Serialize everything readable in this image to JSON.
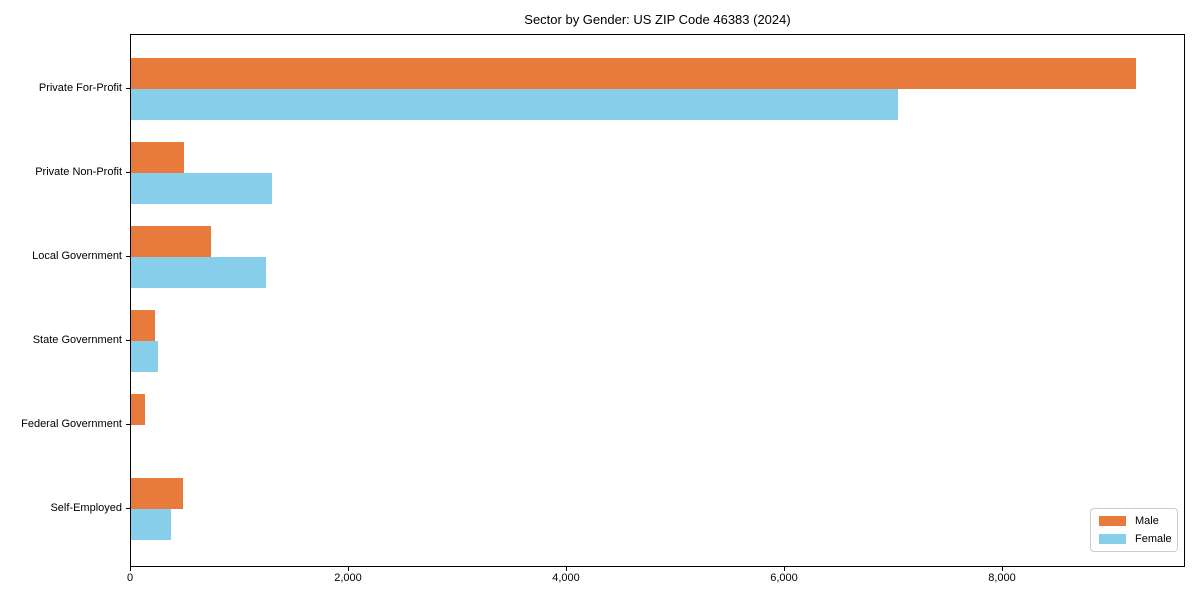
{
  "chart_data": {
    "type": "bar",
    "orientation": "horizontal",
    "title": "Sector by Gender: US ZIP Code 46383 (2024)",
    "categories": [
      "Private For-Profit",
      "Private Non-Profit",
      "Local Government",
      "State Government",
      "Federal Government",
      "Self-Employed"
    ],
    "series": [
      {
        "name": "Male",
        "color": "#e87a3c",
        "values": [
          9220,
          490,
          730,
          220,
          130,
          480
        ]
      },
      {
        "name": "Female",
        "color": "#87ceeb",
        "values": [
          7040,
          1290,
          1240,
          250,
          0,
          370
        ]
      }
    ],
    "xlabel": "",
    "ylabel": "",
    "xlim": [
      0,
      9680
    ],
    "xticks": {
      "values": [
        0,
        2000,
        4000,
        6000,
        8000
      ],
      "labels": [
        "0",
        "2,000",
        "4,000",
        "6,000",
        "8,000"
      ]
    },
    "legend": {
      "position": "lower right"
    },
    "grid": false,
    "colors": {
      "spine": "#000000",
      "text": "#000000",
      "background": "#ffffff"
    }
  }
}
